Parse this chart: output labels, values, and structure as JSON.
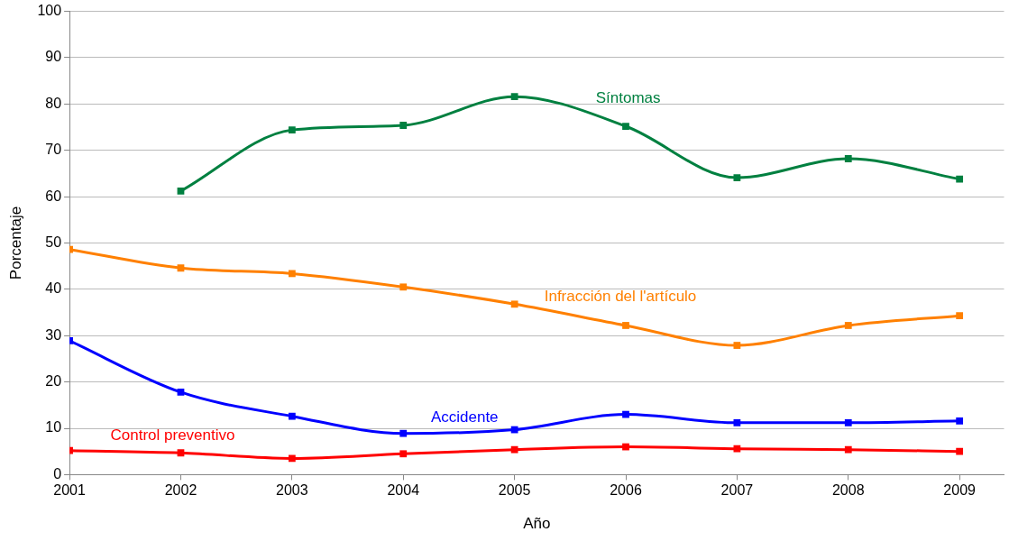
{
  "chart_data": {
    "type": "line",
    "xlabel": "Año",
    "ylabel": "Porcentaje",
    "x": [
      2001,
      2002,
      2003,
      2004,
      2005,
      2006,
      2007,
      2008,
      2009
    ],
    "xlim": [
      2001,
      2009.4
    ],
    "xticks": [
      2001,
      2002,
      2003,
      2004,
      2005,
      2006,
      2007,
      2008,
      2009
    ],
    "ylim": [
      0,
      100
    ],
    "yticks": [
      0,
      10,
      20,
      30,
      40,
      50,
      60,
      70,
      80,
      90,
      100
    ],
    "grid": "y",
    "marker": "square",
    "line_style": "solid",
    "series": [
      {
        "name": "Síntomas",
        "color": "#008040",
        "values": [
          null,
          61.2,
          74.4,
          75.4,
          81.6,
          75.2,
          64.1,
          68.2,
          63.8
        ]
      },
      {
        "name": "Infracción del l'artículo",
        "color": "#ff8000",
        "values": [
          48.6,
          44.6,
          43.4,
          40.5,
          36.8,
          32.2,
          27.9,
          32.2,
          34.3
        ]
      },
      {
        "name": "Accidente",
        "color": "#0000ff",
        "values": [
          28.9,
          17.8,
          12.6,
          8.9,
          9.7,
          13.0,
          11.2,
          11.2,
          11.6
        ]
      },
      {
        "name": "Control preventivo",
        "color": "#ff0000",
        "values": [
          5.2,
          4.7,
          3.5,
          4.5,
          5.4,
          6.0,
          5.6,
          5.4,
          5.0
        ]
      }
    ]
  }
}
